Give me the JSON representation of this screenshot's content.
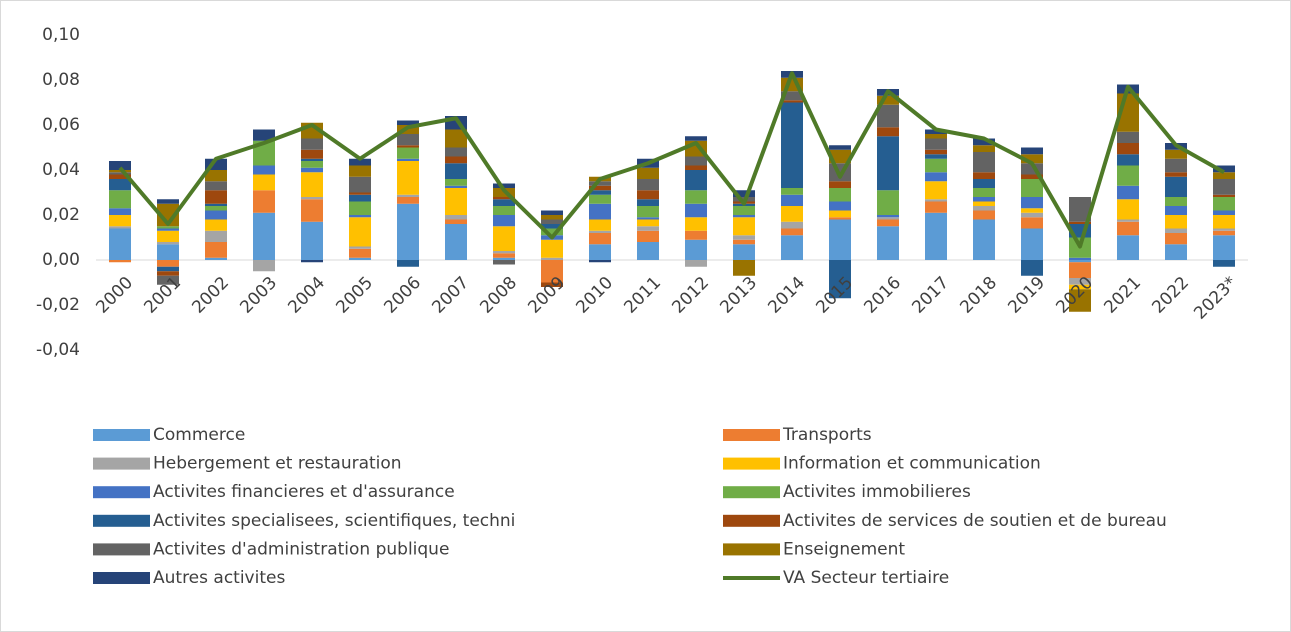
{
  "chart_data": {
    "type": "bar",
    "stacked": true,
    "categories": [
      "2000",
      "2001",
      "2002",
      "2003",
      "2004",
      "2005",
      "2006",
      "2007",
      "2008",
      "2009",
      "2010",
      "2011",
      "2012",
      "2013",
      "2014",
      "2015",
      "2016",
      "2017",
      "2018",
      "2019",
      "2020",
      "2021",
      "2022",
      "2023*"
    ],
    "ylim": [
      -0.04,
      0.1
    ],
    "yticks": [
      {
        "value": -0.04,
        "label": "-0,04"
      },
      {
        "value": -0.02,
        "label": "-0,02"
      },
      {
        "value": 0,
        "label": "0,00"
      },
      {
        "value": 0.02,
        "label": "0,02"
      },
      {
        "value": 0.04,
        "label": "0,04"
      },
      {
        "value": 0.06,
        "label": "0,06"
      },
      {
        "value": 0.08,
        "label": "0,08"
      },
      {
        "value": 0.1,
        "label": "0,10"
      }
    ],
    "grid": false,
    "legend": "bottom",
    "series": [
      {
        "name": "Commerce",
        "color": "#5b9bd5",
        "values": [
          0.014,
          0.007,
          0.001,
          0.021,
          0.017,
          0.001,
          0.025,
          0.016,
          0.001,
          0,
          0.007,
          0.008,
          0.009,
          0.007,
          0.011,
          0.018,
          0.015,
          0.021,
          0.018,
          0.014,
          -0.001,
          0.011,
          0.007,
          0.011
        ]
      },
      {
        "name": "Transports",
        "color": "#ed7d31",
        "values": [
          -0.001,
          -0.003,
          0.007,
          0.01,
          0.01,
          0.004,
          0.003,
          0.002,
          0.002,
          -0.01,
          0.005,
          0.005,
          0.004,
          0.002,
          0.003,
          0.001,
          0.003,
          0.005,
          0.004,
          0.005,
          -0.007,
          0.006,
          0.005,
          0.002
        ]
      },
      {
        "name": "Hebergement et restauration",
        "color": "#a5a5a5",
        "values": [
          0.001,
          0.001,
          0.005,
          -0.005,
          0.001,
          0.001,
          0.001,
          0.002,
          0.001,
          0.001,
          0.001,
          0.002,
          -0.003,
          0.002,
          0.003,
          0,
          0.001,
          0.001,
          0.002,
          0.002,
          -0.003,
          0.001,
          0.002,
          0.001
        ]
      },
      {
        "name": "Information et communication",
        "color": "#ffc000",
        "values": [
          0.005,
          0.005,
          0.005,
          0.007,
          0.011,
          0.013,
          0.015,
          0.012,
          0.011,
          0.008,
          0.005,
          0.003,
          0.006,
          0.008,
          0.007,
          0.003,
          0,
          0.008,
          0.002,
          0.002,
          -0.002,
          0.009,
          0.006,
          0.006
        ]
      },
      {
        "name": "Activites financieres et d'assurance",
        "color": "#4472c4",
        "values": [
          0.003,
          0.001,
          0.004,
          0.004,
          0.002,
          0.001,
          0.001,
          0.001,
          0.005,
          0.002,
          0.007,
          0.001,
          0.006,
          0.001,
          0.005,
          0.004,
          0.001,
          0.004,
          0.002,
          0.005,
          0.001,
          0.006,
          0.004,
          0.002
        ]
      },
      {
        "name": "Activites  immobilieres",
        "color": "#70ad47",
        "values": [
          0.008,
          0.001,
          0.002,
          0.011,
          0.003,
          0.006,
          0.005,
          0.003,
          0.004,
          0.003,
          0.004,
          0.005,
          0.006,
          0.004,
          0.003,
          0.006,
          0.011,
          0.006,
          0.004,
          0.008,
          0.009,
          0.009,
          0.004,
          0.006
        ]
      },
      {
        "name": "Activites specialisees, scientifiques, techni",
        "color": "#255e91",
        "values": [
          0.005,
          -0.002,
          0.001,
          0,
          0.001,
          0.003,
          -0.003,
          0.007,
          0.003,
          0.002,
          0.002,
          0.003,
          0.009,
          0.001,
          0.038,
          -0.017,
          0.024,
          0.002,
          0.004,
          -0.007,
          0.006,
          0.005,
          0.009,
          -0.003
        ]
      },
      {
        "name": "Activites de services de soutien et de bureau",
        "color": "#9e480e",
        "values": [
          0.002,
          -0.002,
          0.006,
          0,
          0.004,
          0.001,
          0.001,
          0.003,
          0.001,
          -0.002,
          0.002,
          0.004,
          0.002,
          0.001,
          0.001,
          0.003,
          0.004,
          0.002,
          0.003,
          0.002,
          0.001,
          0.005,
          0.002,
          0.001
        ]
      },
      {
        "name": " Activites d'administration publique",
        "color": "#636363",
        "values": [
          0.001,
          -0.004,
          0.004,
          0,
          0.005,
          0.007,
          0.005,
          0.004,
          -0.002,
          0.002,
          0.002,
          0.005,
          0.004,
          0.002,
          0.004,
          0.008,
          0.01,
          0.005,
          0.009,
          0.005,
          0.011,
          0.005,
          0.006,
          0.007
        ]
      },
      {
        "name": "Enseignement",
        "color": "#997300",
        "values": [
          0.001,
          0.01,
          0.005,
          0,
          0.007,
          0.005,
          0.004,
          0.008,
          0.004,
          0.002,
          0.002,
          0.005,
          0.007,
          -0.007,
          0.006,
          0.006,
          0.004,
          0.002,
          0.003,
          0.004,
          -0.01,
          0.017,
          0.004,
          0.003
        ]
      },
      {
        "name": "Autres activites",
        "color": "#264478",
        "values": [
          0.004,
          0.002,
          0.005,
          0.005,
          -0.001,
          0.003,
          0.002,
          0.006,
          0.002,
          0.002,
          -0.001,
          0.004,
          0.002,
          0.003,
          0.003,
          0.002,
          0.003,
          0.002,
          0.003,
          0.003,
          0,
          0.004,
          0.003,
          0.003
        ]
      },
      {
        "name": "VA Secteur tertiaire",
        "color": "#4f7a28",
        "type": "line",
        "values": [
          0.041,
          0.016,
          0.045,
          0.052,
          0.06,
          0.045,
          0.059,
          0.063,
          0.031,
          0.01,
          0.036,
          0.043,
          0.052,
          0.025,
          0.083,
          0.037,
          0.075,
          0.058,
          0.054,
          0.043,
          0.006,
          0.077,
          0.051,
          0.039
        ]
      }
    ]
  }
}
